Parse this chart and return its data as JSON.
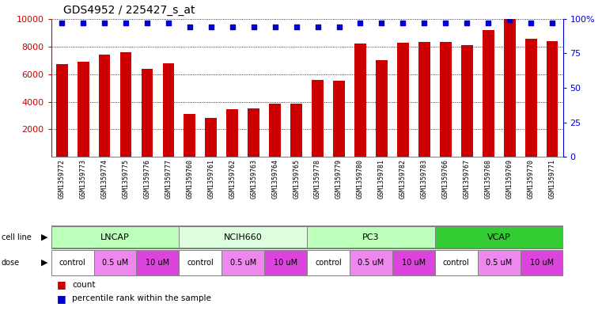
{
  "title": "GDS4952 / 225427_s_at",
  "samples": [
    "GSM1359772",
    "GSM1359773",
    "GSM1359774",
    "GSM1359775",
    "GSM1359776",
    "GSM1359777",
    "GSM1359760",
    "GSM1359761",
    "GSM1359762",
    "GSM1359763",
    "GSM1359764",
    "GSM1359765",
    "GSM1359778",
    "GSM1359779",
    "GSM1359780",
    "GSM1359781",
    "GSM1359782",
    "GSM1359783",
    "GSM1359766",
    "GSM1359767",
    "GSM1359768",
    "GSM1359769",
    "GSM1359770",
    "GSM1359771"
  ],
  "counts": [
    6700,
    6900,
    7400,
    7600,
    6350,
    6750,
    3100,
    2850,
    3450,
    3500,
    3850,
    3850,
    5600,
    5500,
    8200,
    7000,
    8250,
    8300,
    8300,
    8100,
    9200,
    9950,
    8550,
    8350
  ],
  "percentile_ranks": [
    97,
    97,
    97,
    97,
    97,
    97,
    94,
    94,
    94,
    94,
    94,
    94,
    94,
    94,
    97,
    97,
    97,
    97,
    97,
    97,
    97,
    99,
    97,
    97
  ],
  "bar_color": "#cc0000",
  "dot_color": "#0000cc",
  "cell_lines": [
    {
      "name": "LNCAP",
      "start": 0,
      "end": 6,
      "color": "#bbffbb"
    },
    {
      "name": "NCIH660",
      "start": 6,
      "end": 12,
      "color": "#ddffdd"
    },
    {
      "name": "PC3",
      "start": 12,
      "end": 18,
      "color": "#bbffbb"
    },
    {
      "name": "VCAP",
      "start": 18,
      "end": 24,
      "color": "#33cc33"
    }
  ],
  "doses": [
    {
      "label": "control",
      "start": 0,
      "end": 2,
      "color": "#ffffff"
    },
    {
      "label": "0.5 uM",
      "start": 2,
      "end": 4,
      "color": "#ee88ee"
    },
    {
      "label": "10 uM",
      "start": 4,
      "end": 6,
      "color": "#dd44dd"
    },
    {
      "label": "control",
      "start": 6,
      "end": 8,
      "color": "#ffffff"
    },
    {
      "label": "0.5 uM",
      "start": 8,
      "end": 10,
      "color": "#ee88ee"
    },
    {
      "label": "10 uM",
      "start": 10,
      "end": 12,
      "color": "#dd44dd"
    },
    {
      "label": "control",
      "start": 12,
      "end": 14,
      "color": "#ffffff"
    },
    {
      "label": "0.5 uM",
      "start": 14,
      "end": 16,
      "color": "#ee88ee"
    },
    {
      "label": "10 uM",
      "start": 16,
      "end": 18,
      "color": "#dd44dd"
    },
    {
      "label": "control",
      "start": 18,
      "end": 20,
      "color": "#ffffff"
    },
    {
      "label": "0.5 uM",
      "start": 20,
      "end": 22,
      "color": "#ee88ee"
    },
    {
      "label": "10 uM",
      "start": 22,
      "end": 24,
      "color": "#dd44dd"
    }
  ],
  "ylim_left": [
    0,
    10000
  ],
  "ylim_right": [
    0,
    100
  ],
  "yticks_left": [
    2000,
    4000,
    6000,
    8000,
    10000
  ],
  "yticks_right": [
    0,
    25,
    50,
    75,
    100
  ],
  "background_color": "#ffffff",
  "plot_bg_color": "#ffffff",
  "xtick_bg_color": "#dddddd",
  "title_fontsize": 10,
  "bar_width": 0.55
}
